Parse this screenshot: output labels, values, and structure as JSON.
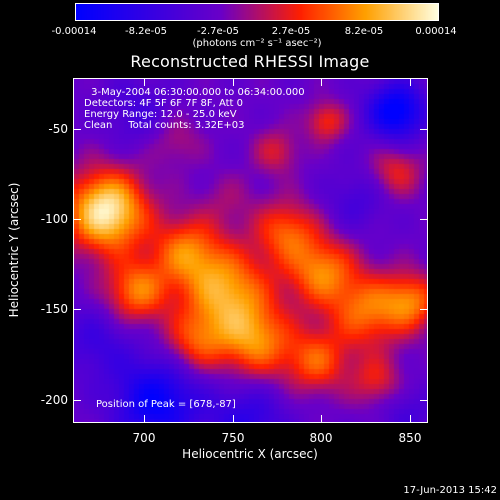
{
  "colorbar": {
    "ticks": [
      "-0.00014",
      "-8.2e-05",
      "-2.7e-05",
      "2.7e-05",
      "8.2e-05",
      "0.00014"
    ],
    "units": "(photons cm⁻² s⁻¹ asec⁻²)",
    "colors": [
      "#0000ff",
      "#6a00c8",
      "#ff2000",
      "#ffa000",
      "#ffffe0"
    ]
  },
  "plot": {
    "title": "Reconstructed RHESSI Image",
    "info_lines": [
      " 3-May-2004 06:30:00.000 to 06:34:00.000",
      "Detectors: 4F 5F 6F 7F 8F, Att 0",
      "Energy Range: 12.0 - 25.0 keV",
      "Clean     Total counts: 3.32E+03"
    ],
    "peak_label": "Position of Peak = [678,-87]",
    "xlabel": "Heliocentric X (arcsec)",
    "ylabel": "Heliocentric Y (arcsec)",
    "xticks": [
      "700",
      "750",
      "800",
      "850"
    ],
    "yticks": [
      "-50",
      "-100",
      "-150",
      "-200"
    ]
  },
  "footer": {
    "date": "17-Jun-2013 15:42"
  }
}
